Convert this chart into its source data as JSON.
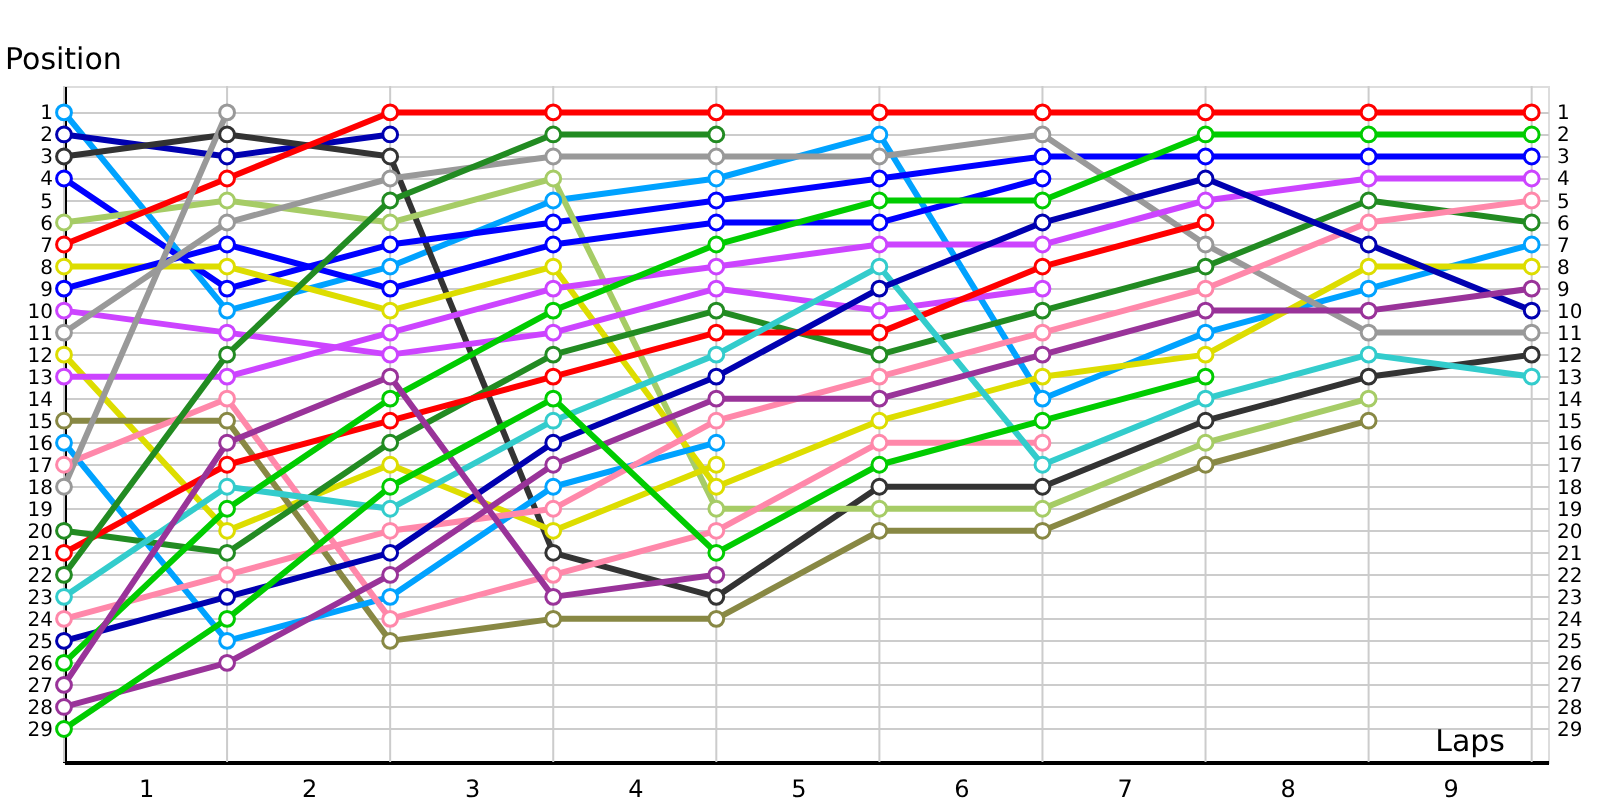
{
  "chart_data": {
    "type": "line",
    "xlabel": "Laps",
    "ylabel": "Position",
    "x": [
      0,
      1,
      2,
      3,
      4,
      5,
      6,
      7,
      8,
      9
    ],
    "xlim": [
      0,
      9.1
    ],
    "xticks": [
      {
        "value": 0,
        "label": null
      },
      {
        "value": 0.5,
        "label": "1"
      },
      {
        "value": 1,
        "label": null
      },
      {
        "value": 1.5,
        "label": "2"
      },
      {
        "value": 2,
        "label": null
      },
      {
        "value": 2.5,
        "label": "3"
      },
      {
        "value": 3,
        "label": null
      },
      {
        "value": 3.5,
        "label": "4"
      },
      {
        "value": 4,
        "label": null
      },
      {
        "value": 4.5,
        "label": "5"
      },
      {
        "value": 5,
        "label": null
      },
      {
        "value": 5.5,
        "label": "6"
      },
      {
        "value": 6,
        "label": null
      },
      {
        "value": 6.5,
        "label": "7"
      },
      {
        "value": 7,
        "label": null
      },
      {
        "value": 7.5,
        "label": "8"
      },
      {
        "value": 8,
        "label": null
      },
      {
        "value": 8.5,
        "label": "9"
      },
      {
        "value": 9,
        "label": null
      }
    ],
    "ylim": [
      30.5,
      -0.2
    ],
    "yticks": [
      1,
      2,
      3,
      4,
      5,
      6,
      7,
      8,
      9,
      10,
      11,
      12,
      13,
      14,
      15,
      16,
      17,
      18,
      19,
      20,
      21,
      22,
      23,
      24,
      25,
      26,
      27,
      28,
      29
    ],
    "y2lim": [
      30.5,
      -0.2
    ],
    "y2ticks": [
      1,
      2,
      3,
      4,
      5,
      6,
      7,
      8,
      9,
      10,
      11,
      12,
      13,
      14,
      15,
      16,
      17,
      18,
      19,
      20,
      21,
      22,
      23,
      24,
      25,
      26,
      27,
      28,
      29
    ],
    "grid": true,
    "legend": false,
    "marker": "circle",
    "line_style": "solid",
    "series": [
      {
        "color": "#00a2ff",
        "values": [
          1,
          10,
          8,
          5,
          4,
          2,
          14,
          11,
          9,
          7
        ]
      },
      {
        "color": "#0000b0",
        "values": [
          2,
          3,
          2,
          null,
          null,
          null,
          null,
          null,
          null,
          null
        ]
      },
      {
        "color": "#333333",
        "values": [
          3,
          2,
          3,
          21,
          23,
          18,
          18,
          15,
          13,
          12
        ]
      },
      {
        "color": "#0000ff",
        "values": [
          4,
          9,
          7,
          6,
          5,
          4,
          3,
          3,
          3,
          3
        ]
      },
      {
        "color": "#a6cc66",
        "values": [
          6,
          5,
          6,
          4,
          19,
          19,
          19,
          16,
          14,
          null
        ]
      },
      {
        "color": "#ff0000",
        "values": [
          7,
          4,
          1,
          1,
          1,
          1,
          1,
          1,
          1,
          1
        ]
      },
      {
        "color": "#dddd00",
        "values": [
          8,
          8,
          10,
          8,
          18,
          15,
          13,
          12,
          8,
          8
        ]
      },
      {
        "color": "#0000ff",
        "values": [
          9,
          7,
          9,
          7,
          6,
          6,
          4,
          null,
          null,
          null
        ]
      },
      {
        "color": "#cc44ff",
        "values": [
          10,
          11,
          12,
          11,
          9,
          10,
          9,
          null,
          null,
          null
        ]
      },
      {
        "color": "#999999",
        "values": [
          11,
          6,
          4,
          3,
          3,
          3,
          2,
          7,
          11,
          11
        ]
      },
      {
        "color": "#dddd00",
        "values": [
          12,
          20,
          17,
          20,
          17,
          null,
          null,
          null,
          null,
          null
        ]
      },
      {
        "color": "#cc44ff",
        "values": [
          13,
          13,
          11,
          9,
          8,
          7,
          7,
          5,
          4,
          4
        ]
      },
      {
        "color": "#888844",
        "values": [
          15,
          15,
          25,
          24,
          24,
          20,
          20,
          17,
          15,
          null
        ]
      },
      {
        "color": "#00a2ff",
        "values": [
          16,
          25,
          23,
          18,
          16,
          null,
          null,
          null,
          null,
          null
        ]
      },
      {
        "color": "#ff88aa",
        "values": [
          17,
          14,
          24,
          22,
          20,
          16,
          16,
          null,
          null,
          null
        ]
      },
      {
        "color": "#999999",
        "values": [
          18,
          1,
          null,
          null,
          null,
          null,
          null,
          null,
          null,
          null
        ]
      },
      {
        "color": "#228b22",
        "values": [
          20,
          21,
          16,
          12,
          10,
          12,
          10,
          8,
          5,
          6
        ]
      },
      {
        "color": "#ff0000",
        "values": [
          21,
          17,
          15,
          13,
          11,
          11,
          8,
          6,
          null,
          null
        ]
      },
      {
        "color": "#228b22",
        "values": [
          22,
          12,
          5,
          2,
          2,
          null,
          null,
          null,
          null,
          null
        ]
      },
      {
        "color": "#33cccc",
        "values": [
          23,
          18,
          19,
          15,
          12,
          8,
          17,
          14,
          12,
          13
        ]
      },
      {
        "color": "#ff88aa",
        "values": [
          24,
          22,
          20,
          19,
          15,
          13,
          11,
          9,
          6,
          5
        ]
      },
      {
        "color": "#0000b0",
        "values": [
          25,
          23,
          21,
          16,
          13,
          9,
          6,
          4,
          7,
          10
        ]
      },
      {
        "color": "#00cc00",
        "values": [
          26,
          19,
          14,
          10,
          7,
          5,
          5,
          2,
          2,
          2
        ]
      },
      {
        "color": "#993399",
        "values": [
          27,
          16,
          13,
          23,
          22,
          null,
          null,
          null,
          null,
          null
        ]
      },
      {
        "color": "#993399",
        "values": [
          28,
          26,
          22,
          17,
          14,
          14,
          12,
          10,
          10,
          9
        ]
      },
      {
        "color": "#00cc00",
        "values": [
          29,
          24,
          18,
          14,
          21,
          17,
          15,
          13,
          null,
          null
        ]
      }
    ]
  }
}
